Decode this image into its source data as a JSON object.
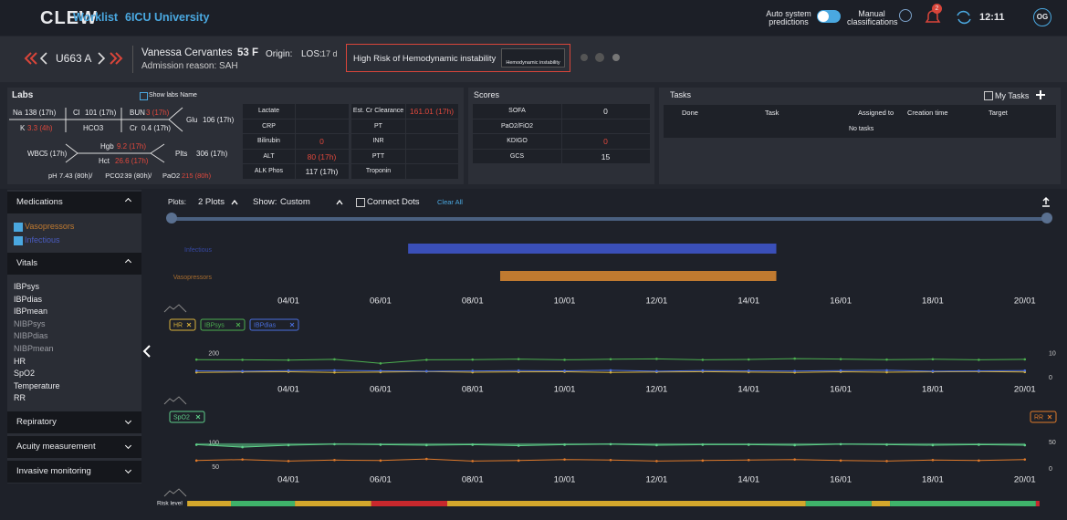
{
  "header": {
    "logo": "CLEW",
    "nav": [
      "Worklist",
      "6ICU University"
    ],
    "auto_predictions": "Auto system predictions",
    "manual": "Manual classifications",
    "notifications": "2",
    "time": "12:11",
    "user": "OG"
  },
  "patient": {
    "unit": "U663 A",
    "name": "Vanessa Cervantes",
    "age_sex": "53 F",
    "origin": "Origin:",
    "los": "LOS:",
    "los_value": "17 d",
    "admission": "Admission reason: SAH",
    "alert": "High Risk of Hemodynamic instability",
    "alert_badge": "Hemodynamic instability"
  },
  "labs": {
    "title": "Labs",
    "show_names": "Show labs Name",
    "fishbone": {
      "na": {
        "label": "Na",
        "value": "138 (17h)"
      },
      "cl": {
        "label": "Cl",
        "value": "101 (17h)"
      },
      "bun": {
        "label": "BUN",
        "value": "3 (17h)",
        "alert": true
      },
      "k": {
        "label": "K",
        "value": "3.3 (4h)",
        "alert": true
      },
      "hco3": {
        "label": "HCO3"
      },
      "cr": {
        "label": "Cr",
        "value": "0.4 (17h)"
      },
      "glu": {
        "label": "Glu",
        "value": "106 (17h)"
      },
      "wbc": {
        "label": "WBC",
        "value": "5 (17h)"
      },
      "hgb": {
        "label": "Hgb",
        "value": "9.2 (17h)",
        "alert": true
      },
      "hct": {
        "label": "Hct",
        "value": "26.6 (17h)",
        "alert": true
      },
      "plts": {
        "label": "Plts",
        "value": "306 (17h)"
      }
    },
    "abg": [
      {
        "label": "pH",
        "value": "7.43 (80h)/"
      },
      {
        "label": "PCO2",
        "value": "39 (80h)/"
      },
      {
        "label": "PaO2",
        "value": "215 (80h)",
        "alert": true
      }
    ],
    "tables": [
      [
        {
          "name": "Lactate"
        },
        {
          "name": "CRP"
        },
        {
          "name": "Bilirubin",
          "value": "0",
          "alert": true
        },
        {
          "name": "ALT",
          "value": "80 (17h)",
          "alert": true
        },
        {
          "name": "ALK Phos",
          "value": "117 (17h)"
        }
      ],
      [
        {
          "name": "Est. Cr Clearance",
          "value": "161.01 (17h)",
          "alert": true
        },
        {
          "name": "PT"
        },
        {
          "name": "INR"
        },
        {
          "name": "PTT"
        },
        {
          "name": "Troponin"
        }
      ]
    ]
  },
  "scores": {
    "title": "Scores",
    "rows": [
      {
        "name": "SOFA",
        "value": "0"
      },
      {
        "name": "PaO2/FiO2"
      },
      {
        "name": "KDIGO",
        "value": "0",
        "alert": true
      },
      {
        "name": "GCS",
        "value": "15"
      }
    ]
  },
  "tasks": {
    "title": "Tasks",
    "my_tasks": "My Tasks",
    "columns": [
      "Done",
      "Task",
      "Assigned to",
      "Creation time",
      "Target"
    ],
    "empty": "No tasks"
  },
  "sidebar": [
    {
      "title": "Medications",
      "items": [
        {
          "name": "Vasopressors",
          "checked": true,
          "color": "#c07a30"
        },
        {
          "name": "Infectious",
          "checked": true,
          "color": "#4a5cc0"
        }
      ]
    },
    {
      "title": "Vitals",
      "items": [
        {
          "name": "IBPsys",
          "enabled": true
        },
        {
          "name": "IBPdias",
          "enabled": true
        },
        {
          "name": "IBPmean",
          "enabled": true
        },
        {
          "name": "NIBPsys",
          "enabled": false
        },
        {
          "name": "NIBPdias",
          "enabled": false
        },
        {
          "name": "NIBPmean",
          "enabled": false
        },
        {
          "name": "HR",
          "enabled": true
        },
        {
          "name": "SpO2",
          "enabled": true
        },
        {
          "name": "Temperature",
          "enabled": true
        },
        {
          "name": "RR",
          "enabled": true
        }
      ]
    },
    {
      "title": "Repiratory"
    },
    {
      "title": "Acuity measurement"
    },
    {
      "title": "Invasive monitoring"
    }
  ],
  "controls": {
    "plots_label": "Plots:",
    "plots": "2 Plots",
    "show_label": "Show:",
    "show": "Custom",
    "connect_dots": "Connect Dots",
    "clear_all": "Clear All"
  },
  "chart_data": [
    {
      "type": "gantt",
      "categories": [
        "Infectious",
        "Vasopressors"
      ],
      "colors": [
        "#3a4fb8",
        "#c07a30"
      ],
      "start": [
        6.6,
        8.6
      ],
      "end": [
        14.6,
        14.6
      ],
      "xlim": [
        1.5,
        20.5
      ],
      "xticks": [
        {
          "value": 4,
          "label": "04/01"
        },
        {
          "value": 6,
          "label": "06/01"
        },
        {
          "value": 8,
          "label": "08/01"
        },
        {
          "value": 10,
          "label": "10/01"
        },
        {
          "value": 12,
          "label": "12/01"
        },
        {
          "value": 14,
          "label": "14/01"
        },
        {
          "value": 16,
          "label": "16/01"
        },
        {
          "value": 18,
          "label": "18/01"
        },
        {
          "value": 20,
          "label": "20/01"
        }
      ]
    },
    {
      "type": "line",
      "x": [
        2,
        3,
        4,
        5,
        6,
        7,
        8,
        9,
        10,
        11,
        12,
        13,
        14,
        15,
        16,
        17,
        18,
        19,
        20
      ],
      "series": [
        {
          "name": "HR",
          "color": "#d9b23a",
          "values": [
            45,
            48,
            50,
            44,
            47,
            52,
            46,
            49,
            50,
            45,
            48,
            51,
            47,
            44,
            50,
            46,
            49,
            52,
            48
          ]
        },
        {
          "name": "IBPsys",
          "color": "#4caf50",
          "values": [
            152,
            150,
            148,
            154,
            120,
            150,
            152,
            156,
            150,
            155,
            158,
            150,
            153,
            160,
            156,
            152,
            155,
            150,
            154
          ]
        },
        {
          "name": "IBPdias",
          "color": "#4a6fe0",
          "values": [
            58,
            55,
            60,
            62,
            58,
            55,
            57,
            60,
            58,
            62,
            55,
            60,
            58,
            56,
            60,
            62,
            55,
            58,
            60
          ]
        }
      ],
      "ylim": [
        -30,
        260
      ],
      "yticks": [
        200
      ],
      "y2lim": [
        -1.5,
        13
      ],
      "y2ticks": [
        10,
        0
      ],
      "xlim": [
        1.5,
        20.5
      ],
      "xticks": [
        {
          "value": 4,
          "label": "04/01"
        },
        {
          "value": 6,
          "label": "06/01"
        },
        {
          "value": 8,
          "label": "08/01"
        },
        {
          "value": 10,
          "label": "10/01"
        },
        {
          "value": 12,
          "label": "12/01"
        },
        {
          "value": 14,
          "label": "14/01"
        },
        {
          "value": 16,
          "label": "16/01"
        },
        {
          "value": 18,
          "label": "18/01"
        },
        {
          "value": 20,
          "label": "20/01"
        }
      ]
    },
    {
      "type": "line",
      "x": [
        2,
        3,
        4,
        5,
        6,
        7,
        8,
        9,
        10,
        11,
        12,
        13,
        14,
        15,
        16,
        17,
        18,
        19,
        20
      ],
      "series": [
        {
          "name": "SpO2",
          "color": "#5fd08a",
          "area": true,
          "values": [
            97,
            92,
            96,
            98,
            97,
            96,
            97,
            95,
            97,
            98,
            96,
            97,
            97,
            96,
            98,
            97,
            96,
            97,
            96
          ]
        },
        {
          "name": "RR",
          "color": "#e07a2a",
          "axis": "y2",
          "values": [
            16,
            18,
            15,
            17,
            16,
            19,
            15,
            16,
            18,
            17,
            15,
            16,
            17,
            18,
            16,
            15,
            17,
            16,
            18
          ]
        }
      ],
      "ylim": [
        35,
        115
      ],
      "yticks": [
        100,
        50
      ],
      "y2lim": [
        -10,
        62
      ],
      "y2ticks": [
        50,
        0
      ],
      "xlim": [
        1.5,
        20.5
      ],
      "xticks": [
        {
          "value": 4,
          "label": "04/01"
        },
        {
          "value": 6,
          "label": "06/01"
        },
        {
          "value": 8,
          "label": "08/01"
        },
        {
          "value": 10,
          "label": "10/01"
        },
        {
          "value": 12,
          "label": "12/01"
        },
        {
          "value": 14,
          "label": "14/01"
        },
        {
          "value": 16,
          "label": "16/01"
        },
        {
          "value": 18,
          "label": "18/01"
        },
        {
          "value": 20,
          "label": "20/01"
        }
      ]
    },
    {
      "type": "risk",
      "label": "Risk level",
      "start": [
        1.8,
        2.75,
        4.14,
        5.8,
        7.45,
        15.24,
        16.67,
        17.07,
        20.24
      ],
      "end": [
        2.75,
        4.14,
        5.8,
        7.45,
        15.24,
        16.67,
        17.07,
        20.24,
        20.32
      ],
      "colors": [
        "#d4a72c",
        "#3fb36a",
        "#d4a72c",
        "#c8282d",
        "#d4a72c",
        "#3fb36a",
        "#d4a72c",
        "#3fb36a",
        "#c8282d"
      ],
      "xlim": [
        1.5,
        20.5
      ]
    }
  ]
}
